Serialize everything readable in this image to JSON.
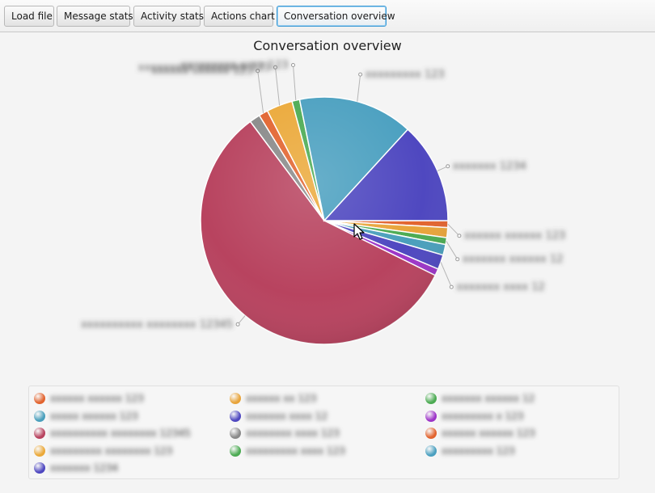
{
  "toolbar": {
    "buttons": [
      {
        "label": "Load file"
      },
      {
        "label": "Message stats"
      },
      {
        "label": "Activity stats"
      },
      {
        "label": "Actions chart"
      },
      {
        "label": "Conversation overview"
      }
    ]
  },
  "chart_data": {
    "type": "pie",
    "title": "Conversation overview",
    "legend_position": "bottom",
    "slices": [
      {
        "label": "xxxxxx xxxxxx 123",
        "value": 0.9,
        "color": "#e2642f"
      },
      {
        "label": "xxxxxx xx 123",
        "value": 1.3,
        "color": "#e8a43a"
      },
      {
        "label": "xxxxxxx xxxxxx 12",
        "value": 0.9,
        "color": "#4cab53"
      },
      {
        "label": "xxxxx xxxxxx 123",
        "value": 1.4,
        "color": "#4a9fbc"
      },
      {
        "label": "xxxxxxx xxxx 12",
        "value": 1.9,
        "color": "#4f48c0"
      },
      {
        "label": "xxxxxxxxx x 123",
        "value": 0.9,
        "color": "#9d35c8"
      },
      {
        "label": "xxxxxxxxxx xxxxxxxx 12345",
        "value": 57.5,
        "color": "#b8435f"
      },
      {
        "label": "xxxxxxxx xxxx 123",
        "value": 1.4,
        "color": "#8a8a8a"
      },
      {
        "label": "xxxxxx xxxxxx 123",
        "value": 1.2,
        "color": "#e2642f"
      },
      {
        "label": "xxxxxxxxx xxxxxxxx 123",
        "value": 3.4,
        "color": "#eba93a"
      },
      {
        "label": "xxxxxxxxx xxxx 123",
        "value": 1.0,
        "color": "#4cab53"
      },
      {
        "label": "xxxxxxxxx 123",
        "value": 15.0,
        "color": "#4ba0c0"
      },
      {
        "label": "xxxxxxx 1234",
        "value": 13.2,
        "color": "#4f48c0"
      }
    ]
  }
}
